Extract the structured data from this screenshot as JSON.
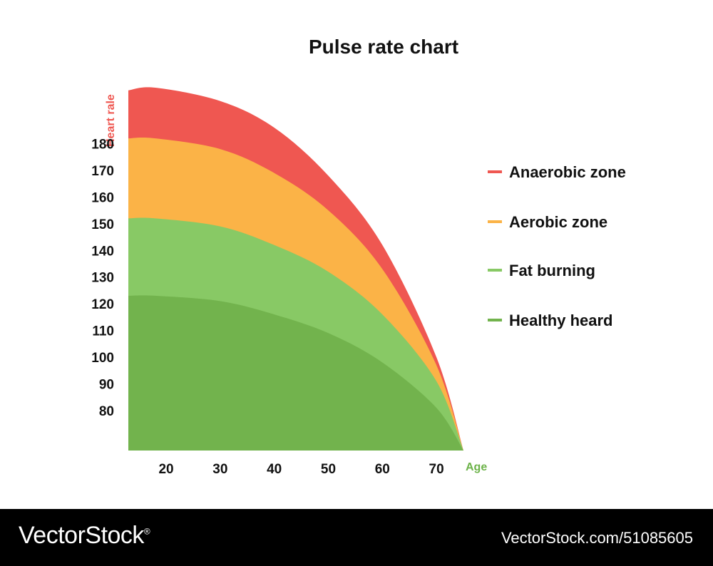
{
  "chart_data": {
    "type": "area",
    "title": "Pulse rate chart",
    "ylabel": "Heart rale",
    "xlabel": "Age",
    "x_ticks": [
      20,
      30,
      40,
      50,
      60,
      70
    ],
    "y_ticks": [
      80,
      90,
      100,
      110,
      120,
      130,
      140,
      150,
      160,
      170,
      180
    ],
    "xlim": [
      13,
      75
    ],
    "ylim": [
      65,
      205
    ],
    "grid": false,
    "legend_position": "right",
    "series": [
      {
        "name": "Anaerobic zone",
        "color": "#ef5751",
        "x": [
          13,
          18,
          30,
          40,
          50,
          60,
          70,
          75
        ],
        "y": [
          200,
          201,
          196,
          186,
          168,
          142,
          100,
          65
        ]
      },
      {
        "name": "Aerobic zone",
        "color": "#fbb347",
        "x": [
          13,
          18,
          30,
          40,
          50,
          60,
          70,
          75
        ],
        "y": [
          182,
          182,
          178,
          169,
          155,
          133,
          97,
          65
        ]
      },
      {
        "name": "Fat burning",
        "color": "#88c965",
        "x": [
          13,
          18,
          30,
          40,
          50,
          60,
          70,
          75
        ],
        "y": [
          152,
          152,
          149,
          142,
          132,
          116,
          91,
          65
        ]
      },
      {
        "name": "Healthy heard",
        "color": "#72b34d",
        "x": [
          13,
          18,
          30,
          40,
          50,
          60,
          70,
          75
        ],
        "y": [
          123,
          123,
          121,
          116,
          109,
          98,
          81,
          65
        ]
      }
    ]
  },
  "colors": {
    "ylabel": "#ef5751",
    "xlabel": "#6db34a"
  },
  "footer": {
    "brand": "VectorStock",
    "reg": "®",
    "ref": "VectorStock.com/51085605"
  }
}
